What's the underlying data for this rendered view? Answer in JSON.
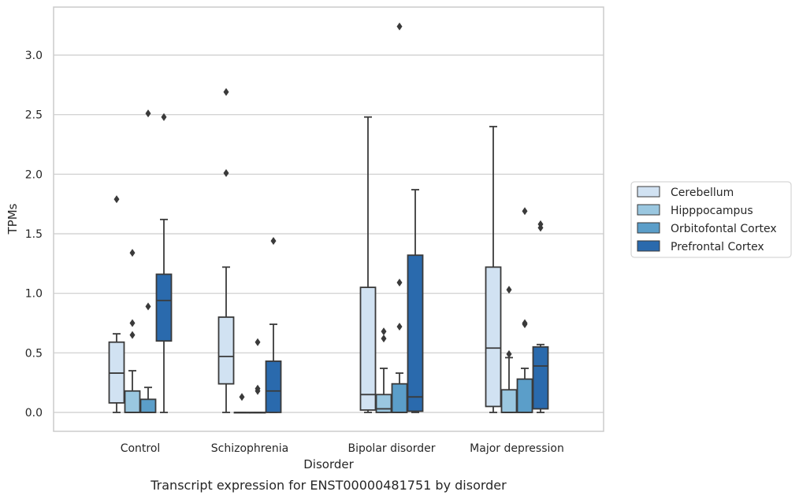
{
  "chart_data": {
    "type": "box",
    "xlabel": "Disorder",
    "ylabel": "TPMs",
    "caption": "Transcript expression for ENST00000481751 by disorder",
    "ylim": [
      -0.16,
      3.42
    ],
    "yticks": [
      "0.0",
      "0.5",
      "1.0",
      "1.5",
      "2.0",
      "2.5",
      "3.0"
    ],
    "grid": true,
    "legend_position": "right",
    "categories": [
      "Control",
      "Schizophrenia",
      "Bipolar disorder",
      "Major depression"
    ],
    "series": [
      {
        "name": "Cerebellum",
        "color": "#d1e2f2",
        "boxes": [
          {
            "whislo": 0.0,
            "q1": 0.08,
            "med": 0.33,
            "q3": 0.59,
            "whishi": 0.66,
            "fliers": [
              1.79
            ]
          },
          {
            "whislo": 0.0,
            "q1": 0.24,
            "med": 0.47,
            "q3": 0.8,
            "whishi": 1.22,
            "fliers": [
              2.01,
              2.69
            ]
          },
          {
            "whislo": 0.0,
            "q1": 0.02,
            "med": 0.15,
            "q3": 1.05,
            "whishi": 2.48,
            "fliers": []
          },
          {
            "whislo": 0.0,
            "q1": 0.05,
            "med": 0.54,
            "q3": 1.22,
            "whishi": 2.4,
            "fliers": []
          }
        ]
      },
      {
        "name": "Hipppocampus",
        "color": "#9ac7e0",
        "boxes": [
          {
            "whislo": 0.0,
            "q1": 0.0,
            "med": 0.0,
            "q3": 0.18,
            "whishi": 0.35,
            "fliers": [
              0.65,
              0.75,
              1.34
            ]
          },
          {
            "whislo": 0.0,
            "q1": 0.0,
            "med": 0.0,
            "q3": 0.0,
            "whishi": 0.0,
            "fliers": [
              0.13
            ]
          },
          {
            "whislo": 0.0,
            "q1": 0.0,
            "med": 0.03,
            "q3": 0.15,
            "whishi": 0.37,
            "fliers": [
              0.62,
              0.68
            ]
          },
          {
            "whislo": 0.0,
            "q1": 0.0,
            "med": 0.0,
            "q3": 0.19,
            "whishi": 0.46,
            "fliers": [
              0.49,
              1.03
            ]
          }
        ]
      },
      {
        "name": "Orbitofontal Cortex",
        "color": "#5b9ec9",
        "boxes": [
          {
            "whislo": 0.0,
            "q1": 0.0,
            "med": 0.0,
            "q3": 0.11,
            "whishi": 0.21,
            "fliers": [
              0.89,
              2.51
            ]
          },
          {
            "whislo": 0.0,
            "q1": 0.0,
            "med": 0.0,
            "q3": 0.0,
            "whishi": 0.0,
            "fliers": [
              0.18,
              0.2,
              0.59
            ]
          },
          {
            "whislo": 0.0,
            "q1": 0.0,
            "med": 0.0,
            "q3": 0.24,
            "whishi": 0.33,
            "fliers": [
              0.72,
              1.09,
              3.24
            ]
          },
          {
            "whislo": 0.0,
            "q1": 0.0,
            "med": 0.0,
            "q3": 0.28,
            "whishi": 0.37,
            "fliers": [
              0.74,
              0.75,
              1.69
            ]
          }
        ]
      },
      {
        "name": "Prefrontal Cortex",
        "color": "#2a6aad",
        "boxes": [
          {
            "whislo": 0.0,
            "q1": 0.6,
            "med": 0.94,
            "q3": 1.16,
            "whishi": 1.62,
            "fliers": [
              2.48
            ]
          },
          {
            "whislo": 0.0,
            "q1": 0.0,
            "med": 0.18,
            "q3": 0.43,
            "whishi": 0.74,
            "fliers": [
              1.44
            ]
          },
          {
            "whislo": 0.0,
            "q1": 0.01,
            "med": 0.13,
            "q3": 1.32,
            "whishi": 1.87,
            "fliers": []
          },
          {
            "whislo": 0.0,
            "q1": 0.03,
            "med": 0.39,
            "q3": 0.55,
            "whishi": 0.57,
            "fliers": [
              1.55,
              1.58
            ]
          }
        ]
      }
    ]
  }
}
